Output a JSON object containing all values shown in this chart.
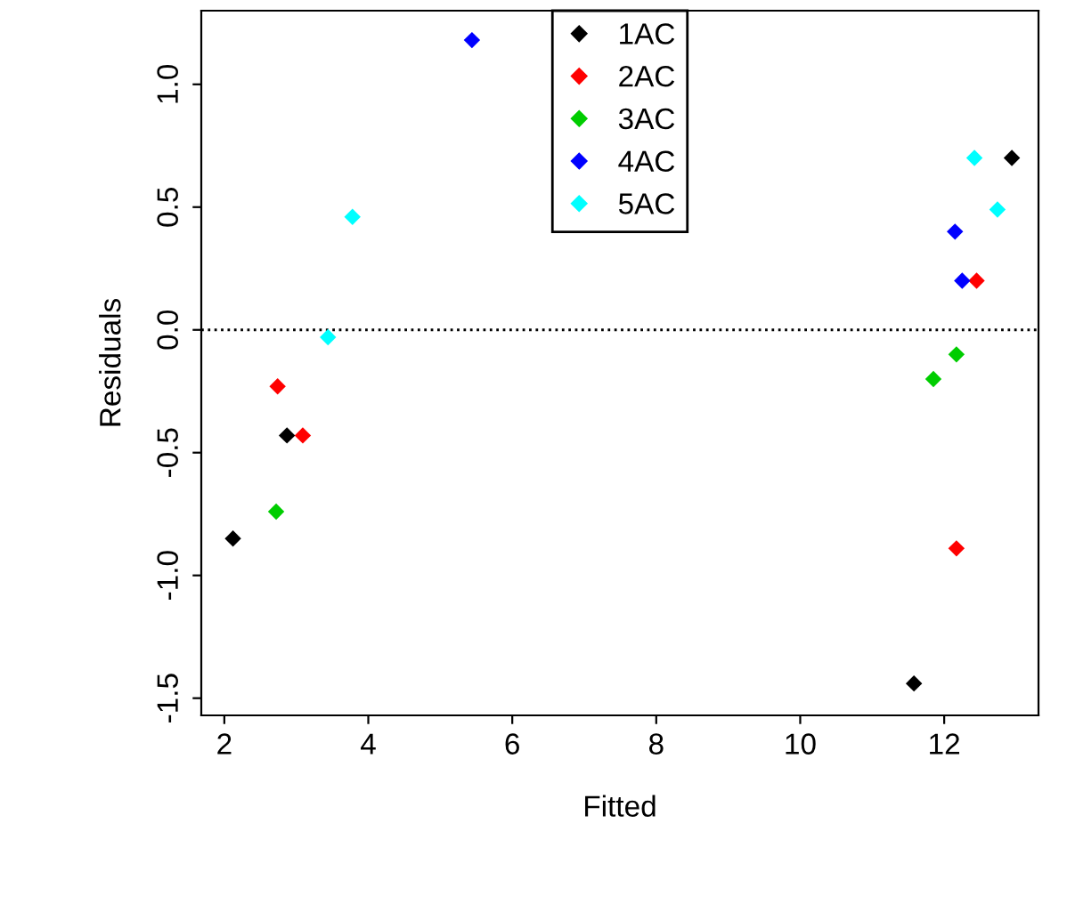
{
  "chart_data": {
    "type": "scatter",
    "xlabel": "Fitted",
    "ylabel": "Residuals",
    "xlim": [
      1.68,
      13.31
    ],
    "ylim": [
      -1.57,
      1.3
    ],
    "xticks": [
      2,
      4,
      6,
      8,
      10,
      12
    ],
    "yticks": [
      -1.5,
      {
        "value": -1,
        "label": "-1.0"
      },
      -0.5,
      {
        "value": 0,
        "label": "0.0"
      },
      0.5,
      {
        "value": 1,
        "label": "1.0"
      }
    ],
    "grid": false,
    "legend": "top",
    "marker": "diamond",
    "ref_lines": [
      {
        "axis": "y",
        "value": 0,
        "line_style": "dotted",
        "color": "#000000"
      }
    ],
    "series": [
      {
        "name": "1AC",
        "color": "#000000",
        "x": [
          2.12,
          2.87,
          11.58,
          12.94
        ],
        "values": [
          -0.85,
          -0.43,
          -1.44,
          0.7
        ]
      },
      {
        "name": "2AC",
        "color": "#ff0000",
        "x": [
          2.74,
          3.09,
          12.17,
          12.45
        ],
        "values": [
          -0.23,
          -0.43,
          -0.89,
          0.2
        ]
      },
      {
        "name": "3AC",
        "color": "#00cd00",
        "x": [
          2.72,
          11.85,
          12.17
        ],
        "values": [
          -0.74,
          -0.2,
          -0.1
        ]
      },
      {
        "name": "4AC",
        "color": "#0000ff",
        "x": [
          5.44,
          12.15,
          12.25
        ],
        "values": [
          1.18,
          0.4,
          0.2
        ]
      },
      {
        "name": "5AC",
        "color": "#00ffff",
        "x": [
          3.44,
          3.78,
          12.42,
          12.74
        ],
        "values": [
          -0.03,
          0.46,
          0.7,
          0.49
        ]
      }
    ]
  }
}
